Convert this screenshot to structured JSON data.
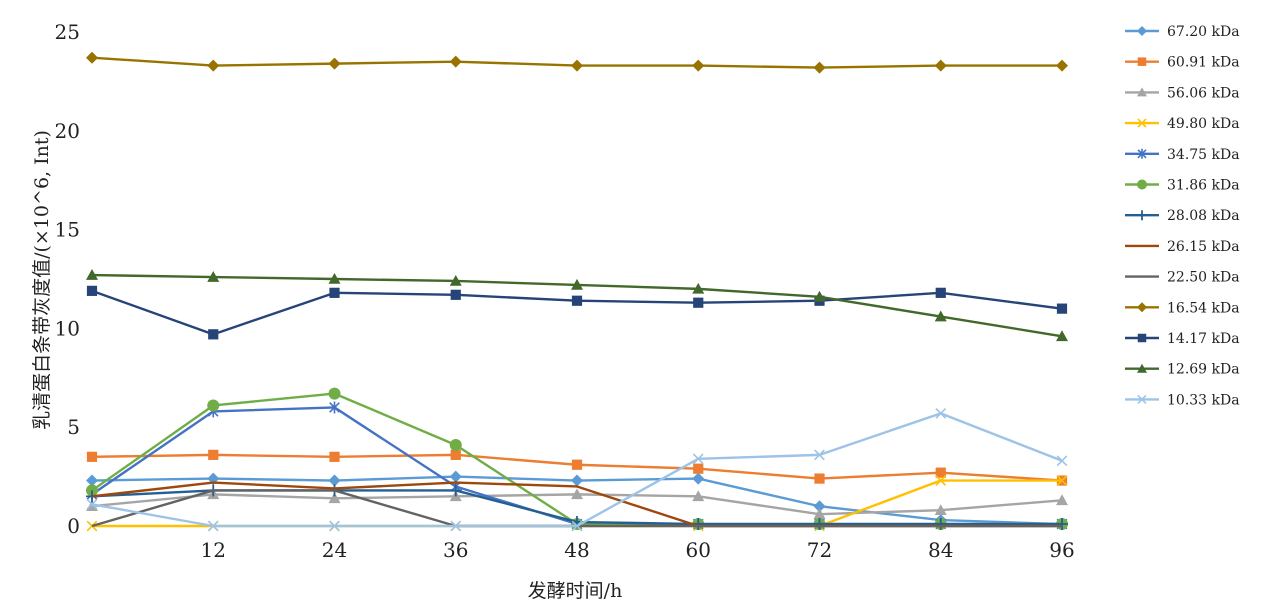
{
  "chart_data": {
    "type": "line",
    "title": "",
    "xlabel": "发酵时间/h",
    "ylabel": "乳清蛋白条带灰度值/(×10^6, Int)",
    "x": [
      0,
      12,
      24,
      36,
      48,
      60,
      72,
      84,
      96
    ],
    "x_tick_labels": [
      "12",
      "24",
      "36",
      "48",
      "60",
      "72",
      "84",
      "96"
    ],
    "x_tick_values": [
      12,
      24,
      36,
      48,
      60,
      72,
      84,
      96
    ],
    "ylim": [
      0,
      25
    ],
    "y_ticks": [
      0,
      5,
      10,
      15,
      20,
      25
    ],
    "y_tick_labels": [
      "0",
      "5",
      "10",
      "15",
      "20",
      "25"
    ],
    "grid": false,
    "legend_position": "right",
    "series": [
      {
        "name": "67.20 kDa",
        "color": "#5B9BD5",
        "marker": "diamond",
        "values": [
          2.3,
          2.4,
          2.3,
          2.5,
          2.3,
          2.4,
          1.0,
          0.3,
          0.1
        ]
      },
      {
        "name": "60.91 kDa",
        "color": "#ED7D31",
        "marker": "square",
        "values": [
          3.5,
          3.6,
          3.5,
          3.6,
          3.1,
          2.9,
          2.4,
          2.7,
          2.3
        ]
      },
      {
        "name": "56.06 kDa",
        "color": "#A5A5A5",
        "marker": "triangle",
        "values": [
          1.0,
          1.6,
          1.4,
          1.5,
          1.6,
          1.5,
          0.6,
          0.8,
          1.3
        ]
      },
      {
        "name": "49.80 kDa",
        "color": "#FFC000",
        "marker": "x",
        "values": [
          0.0,
          0.0,
          0.0,
          0.0,
          0.0,
          0.0,
          0.0,
          2.3,
          2.3
        ]
      },
      {
        "name": "34.75 kDa",
        "color": "#4472C4",
        "marker": "star",
        "values": [
          1.6,
          5.8,
          6.0,
          2.0,
          0.1,
          0.1,
          0.1,
          0.1,
          0.1
        ]
      },
      {
        "name": "31.86 kDa",
        "color": "#70AD47",
        "marker": "circle",
        "values": [
          1.8,
          6.1,
          6.7,
          4.1,
          0.1,
          0.1,
          0.1,
          0.1,
          0.1
        ]
      },
      {
        "name": "28.08 kDa",
        "color": "#255E91",
        "marker": "plus",
        "values": [
          1.5,
          1.8,
          1.8,
          1.8,
          0.2,
          0.1,
          0.1,
          0.1,
          0.1
        ]
      },
      {
        "name": "26.15 kDa",
        "color": "#9E480E",
        "marker": "none",
        "values": [
          1.5,
          2.2,
          1.9,
          2.2,
          2.0,
          0.0,
          0.0,
          0.0,
          0.0
        ]
      },
      {
        "name": "22.50 kDa",
        "color": "#636363",
        "marker": "none",
        "values": [
          0.0,
          1.8,
          1.8,
          0.0,
          0.0,
          0.0,
          0.0,
          0.0,
          0.0
        ]
      },
      {
        "name": "16.54 kDa",
        "color": "#997300",
        "marker": "diamond",
        "values": [
          23.7,
          23.3,
          23.4,
          23.5,
          23.3,
          23.3,
          23.2,
          23.3,
          23.3
        ]
      },
      {
        "name": "14.17 kDa",
        "color": "#264478",
        "marker": "square",
        "values": [
          11.9,
          9.7,
          11.8,
          11.7,
          11.4,
          11.3,
          11.4,
          11.8,
          11.0
        ]
      },
      {
        "name": "12.69 kDa",
        "color": "#43682B",
        "marker": "triangle",
        "values": [
          12.7,
          12.6,
          12.5,
          12.4,
          12.2,
          12.0,
          11.6,
          10.6,
          9.6
        ]
      },
      {
        "name": "10.33 kDa",
        "color": "#9DC3E6",
        "marker": "x",
        "values": [
          1.1,
          0.0,
          0.0,
          0.0,
          0.0,
          3.4,
          3.6,
          5.7,
          3.3
        ]
      }
    ]
  }
}
